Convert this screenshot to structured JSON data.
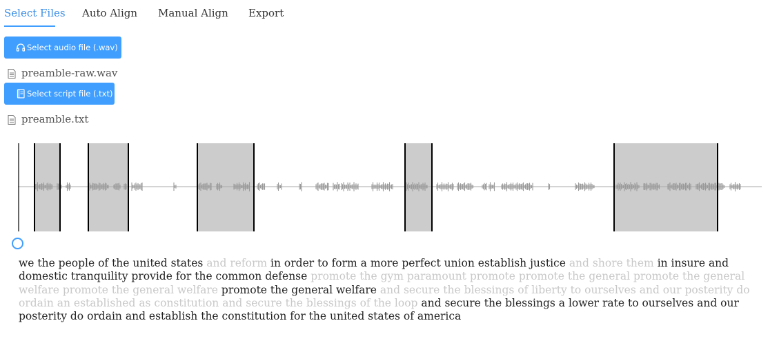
{
  "tabs": [
    {
      "label": "Select Files",
      "active": true
    },
    {
      "label": "Auto Align",
      "active": false
    },
    {
      "label": "Manual Align",
      "active": false
    },
    {
      "label": "Export",
      "active": false
    }
  ],
  "audio_button": {
    "label": "Select audio file (.wav)",
    "icon": "headphones-icon"
  },
  "audio_file": {
    "name": "preamble-raw.wav",
    "icon": "file-icon"
  },
  "script_button": {
    "label": "Select script file (.txt)",
    "icon": "notebook-icon"
  },
  "script_file": {
    "name": "preamble.txt",
    "icon": "file-icon"
  },
  "colors": {
    "accent": "#409eff",
    "region": "#cccccc",
    "waveform": "#999999",
    "inserted_text": "#c8c8c8"
  },
  "transcript": [
    {
      "text": "we the people of the united states ",
      "type": "match"
    },
    {
      "text": "and reform ",
      "type": "inserted"
    },
    {
      "text": "in order to form a more perfect union establish justice ",
      "type": "match"
    },
    {
      "text": "and shore them ",
      "type": "inserted"
    },
    {
      "text": "in insure and domestic tranquility provide for the common defense ",
      "type": "match"
    },
    {
      "text": "promote the gym paramount promote promote the general promote the general welfare promote the general welfare ",
      "type": "inserted"
    },
    {
      "text": "promote the general welfare ",
      "type": "match"
    },
    {
      "text": "and secure the blessings of liberty to ourselves and our posterity do ordain an established as constitution and secure the blessings of the loop ",
      "type": "inserted"
    },
    {
      "text": "and secure the blessings a lower rate to ourselves and our posterity do ordain and establish the constitution for the united states of america",
      "type": "match"
    }
  ]
}
